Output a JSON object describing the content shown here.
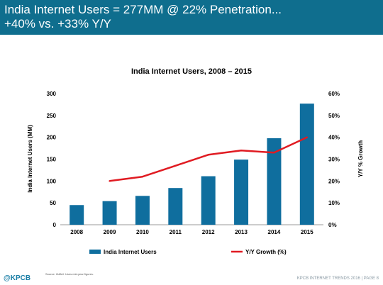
{
  "banner": {
    "line1": "India Internet Users = 277MM @ 22% Penetration...",
    "line2": "+40% vs. +33% Y/Y"
  },
  "chart_data": {
    "type": "bar",
    "title": "India Internet Users, 2008 – 2015",
    "categories": [
      "2008",
      "2009",
      "2010",
      "2011",
      "2012",
      "2013",
      "2014",
      "2015"
    ],
    "series": [
      {
        "name": "India Internet Users",
        "type": "bar",
        "axis": "left",
        "color": "#0f6e9e",
        "values": [
          45,
          54,
          66,
          84,
          111,
          149,
          198,
          277
        ]
      },
      {
        "name": "Y/Y Growth (%)",
        "type": "line",
        "axis": "right",
        "color": "#e01b22",
        "values": [
          null,
          20,
          22,
          27,
          32,
          34,
          33,
          40
        ]
      }
    ],
    "ylabel": "India Internet Users (MM)",
    "y2label": "Y/Y % Growth",
    "ylim": [
      0,
      300
    ],
    "y2lim": [
      0,
      60
    ],
    "yticks": [
      "0",
      "50",
      "100",
      "150",
      "200",
      "250",
      "300"
    ],
    "y2ticks": [
      "0%",
      "10%",
      "20%",
      "30%",
      "40%",
      "50%",
      "60%"
    ],
    "grid": false,
    "legend": "bottom"
  },
  "source": "Source: IAMAI. Uses mid-year figures.",
  "logo": "@KPCB",
  "footer": "KPCB INTERNET TRENDS 2016  |  PAGE 8"
}
